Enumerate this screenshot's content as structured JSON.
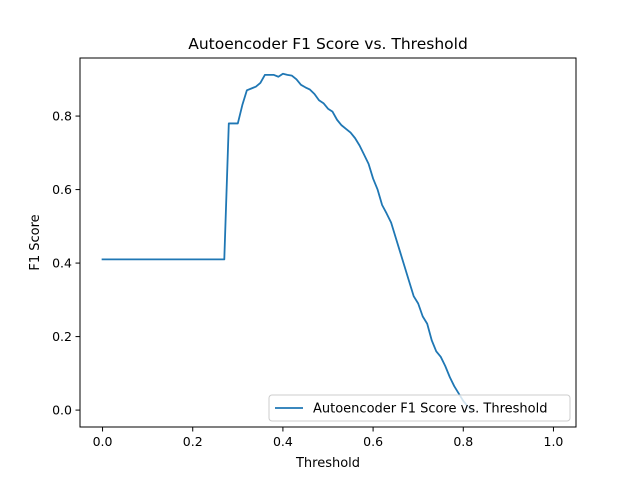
{
  "chart_data": {
    "type": "line",
    "title": "Autoencoder F1 Score vs. Threshold",
    "xlabel": "Threshold",
    "ylabel": "F1 Score",
    "xlim": [
      -0.05,
      1.05
    ],
    "ylim": [
      -0.046,
      0.958
    ],
    "xticks": [
      0.0,
      0.2,
      0.4,
      0.6,
      0.8,
      1.0
    ],
    "xtick_labels": [
      "0.0",
      "0.2",
      "0.4",
      "0.6",
      "0.8",
      "1.0"
    ],
    "yticks": [
      0.0,
      0.2,
      0.4,
      0.6,
      0.8
    ],
    "ytick_labels": [
      "0.0",
      "0.2",
      "0.4",
      "0.6",
      "0.8"
    ],
    "grid": false,
    "legend_position": "lower-right",
    "series": [
      {
        "name": "Autoencoder F1 Score vs. Threshold",
        "color": "#1f77b4",
        "x": [
          0.0,
          0.05,
          0.1,
          0.15,
          0.2,
          0.25,
          0.27,
          0.28,
          0.29,
          0.3,
          0.31,
          0.32,
          0.33,
          0.34,
          0.35,
          0.36,
          0.37,
          0.38,
          0.39,
          0.4,
          0.41,
          0.42,
          0.43,
          0.44,
          0.45,
          0.46,
          0.47,
          0.48,
          0.49,
          0.5,
          0.51,
          0.52,
          0.53,
          0.54,
          0.55,
          0.56,
          0.57,
          0.58,
          0.59,
          0.6,
          0.61,
          0.62,
          0.63,
          0.64,
          0.65,
          0.66,
          0.67,
          0.68,
          0.69,
          0.7,
          0.71,
          0.72,
          0.73,
          0.74,
          0.75,
          0.76,
          0.77,
          0.78,
          0.79,
          0.8,
          0.81,
          0.82
        ],
        "y": [
          0.41,
          0.41,
          0.41,
          0.41,
          0.41,
          0.41,
          0.41,
          0.78,
          0.78,
          0.78,
          0.83,
          0.87,
          0.875,
          0.88,
          0.89,
          0.912,
          0.912,
          0.912,
          0.907,
          0.915,
          0.912,
          0.91,
          0.9,
          0.885,
          0.878,
          0.872,
          0.86,
          0.843,
          0.835,
          0.82,
          0.812,
          0.79,
          0.775,
          0.765,
          0.755,
          0.74,
          0.72,
          0.695,
          0.67,
          0.63,
          0.6,
          0.558,
          0.535,
          0.51,
          0.47,
          0.43,
          0.39,
          0.35,
          0.31,
          0.29,
          0.255,
          0.235,
          0.19,
          0.16,
          0.145,
          0.12,
          0.09,
          0.065,
          0.045,
          0.025,
          0.01,
          0.0
        ]
      }
    ]
  }
}
